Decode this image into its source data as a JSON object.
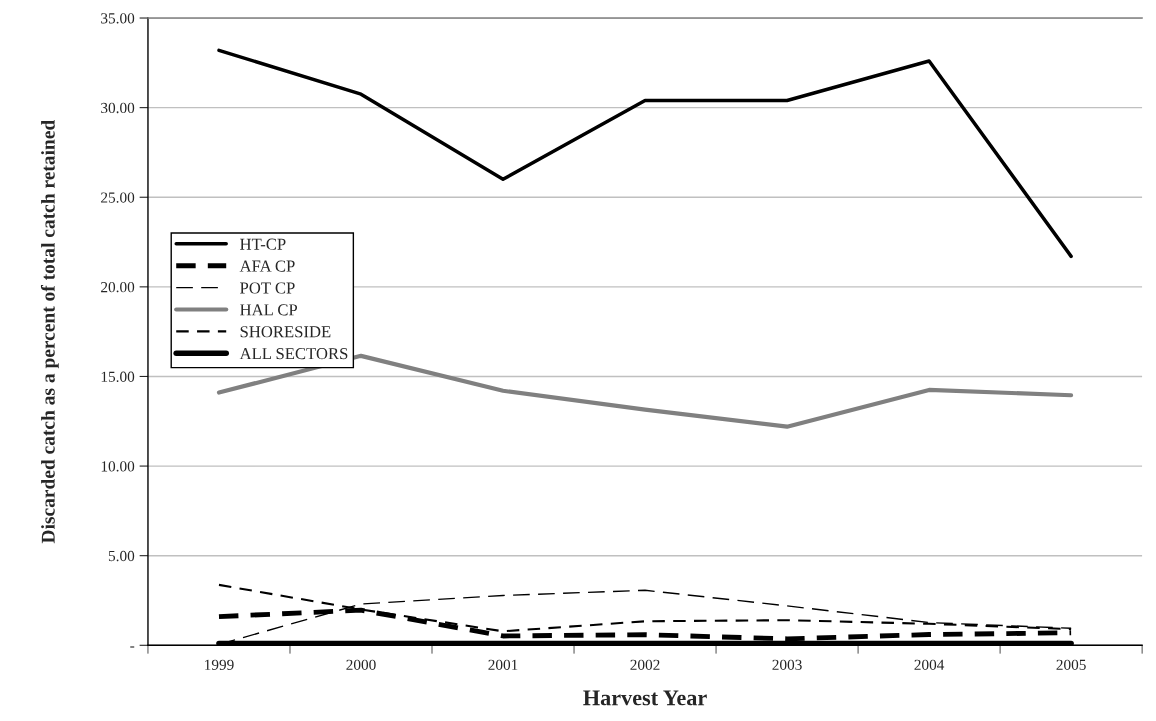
{
  "chart_data": {
    "type": "line",
    "xlabel": "Harvest Year",
    "ylabel": "Discarded catch as a percent of total catch retained",
    "categories": [
      "1999",
      "2000",
      "2001",
      "2002",
      "2003",
      "2004",
      "2005"
    ],
    "series": [
      {
        "name": "HT-CP",
        "color": "#000000",
        "line_style": "solid",
        "values": [
          33.2,
          30.75,
          26.0,
          30.4,
          30.4,
          32.6,
          21.7
        ]
      },
      {
        "name": "AFA CP",
        "color": "#000000",
        "line_style": "dashed",
        "values": [
          1.6,
          1.96,
          0.52,
          0.59,
          0.36,
          0.6,
          0.7
        ]
      },
      {
        "name": "POT CP",
        "color": "#000000",
        "line_style": "dashed",
        "values": [
          0.05,
          2.3,
          2.78,
          3.07,
          2.2,
          1.27,
          0.95
        ]
      },
      {
        "name": "HAL CP",
        "color": "#808080",
        "line_style": "solid",
        "values": [
          14.1,
          16.15,
          14.2,
          13.15,
          12.2,
          14.25,
          13.95
        ]
      },
      {
        "name": "SHORESIDE",
        "color": "#000000",
        "line_style": "dashed",
        "values": [
          3.37,
          2.0,
          0.78,
          1.34,
          1.4,
          1.2,
          0.9
        ]
      },
      {
        "name": "ALL SECTORS",
        "color": "#000000",
        "line_style": "solid",
        "values": [
          0.1,
          0.1,
          0.1,
          0.1,
          0.1,
          0.1,
          0.1
        ]
      }
    ],
    "ylim": [
      0,
      35
    ],
    "yticks": [
      {
        "value": 0,
        "label": "-"
      },
      {
        "value": 5,
        "label": "5.00"
      },
      {
        "value": 10,
        "label": "10.00"
      },
      {
        "value": 15,
        "label": "15.00"
      },
      {
        "value": 20,
        "label": "20.00"
      },
      {
        "value": 25,
        "label": "25.00"
      },
      {
        "value": 30,
        "label": "30.00"
      },
      {
        "value": 35,
        "label": "35.00"
      }
    ],
    "grid": "y",
    "legend": "left",
    "marker": "none"
  }
}
